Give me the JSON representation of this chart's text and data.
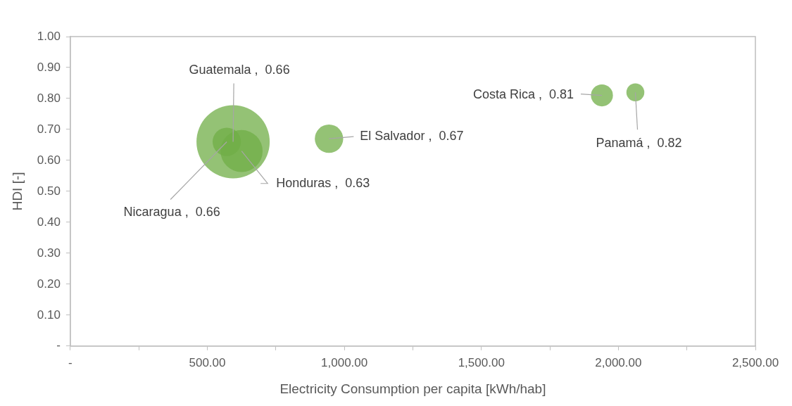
{
  "chart_data": {
    "type": "bubble",
    "xlabel": "Electricity Consumption per capita [kWh/hab]",
    "ylabel": "HDI [-]",
    "series": [
      {
        "color": "#70ad47",
        "x": [
          594,
          571,
          625,
          944,
          1940,
          2062
        ],
        "values": [
          0.66,
          0.66,
          0.63,
          0.67,
          0.81,
          0.82
        ],
        "sizes": [
          1,
          0.15,
          0.33,
          0.15,
          0.09,
          0.06
        ],
        "value_labels": [
          "Guatemala ,  0.66",
          "Nicaragua ,  0.66",
          "Honduras ,  0.63",
          "El Salvador ,  0.67",
          "Costa Rica ,  0.81",
          "Panamá ,  0.82"
        ]
      }
    ],
    "xlim": [
      0,
      2500
    ],
    "xticks": [
      {
        "value": 0,
        "label": "-"
      },
      {
        "value": 250,
        "label": null
      },
      {
        "value": 500,
        "label": "500.00"
      },
      {
        "value": 750,
        "label": null
      },
      {
        "value": 1000,
        "label": "1,000.00"
      },
      {
        "value": 1250,
        "label": null
      },
      {
        "value": 1500,
        "label": "1,500.00"
      },
      {
        "value": 1750,
        "label": null
      },
      {
        "value": 2000,
        "label": "2,000.00"
      },
      {
        "value": 2250,
        "label": null
      },
      {
        "value": 2500,
        "label": "2,500.00"
      }
    ],
    "ylim": [
      0,
      1
    ],
    "yticks": [
      {
        "value": 0,
        "label": "-"
      },
      {
        "value": 0.1,
        "label": "0.10"
      },
      {
        "value": 0.2,
        "label": "0.20"
      },
      {
        "value": 0.3,
        "label": "0.30"
      },
      {
        "value": 0.4,
        "label": "0.40"
      },
      {
        "value": 0.5,
        "label": "0.50"
      },
      {
        "value": 0.6,
        "label": "0.60"
      },
      {
        "value": 0.7,
        "label": "0.70"
      },
      {
        "value": 0.8,
        "label": "0.80"
      },
      {
        "value": 0.9,
        "label": "0.90"
      },
      {
        "value": 1,
        "label": "1.00"
      }
    ],
    "grid": false,
    "legend": false
  }
}
